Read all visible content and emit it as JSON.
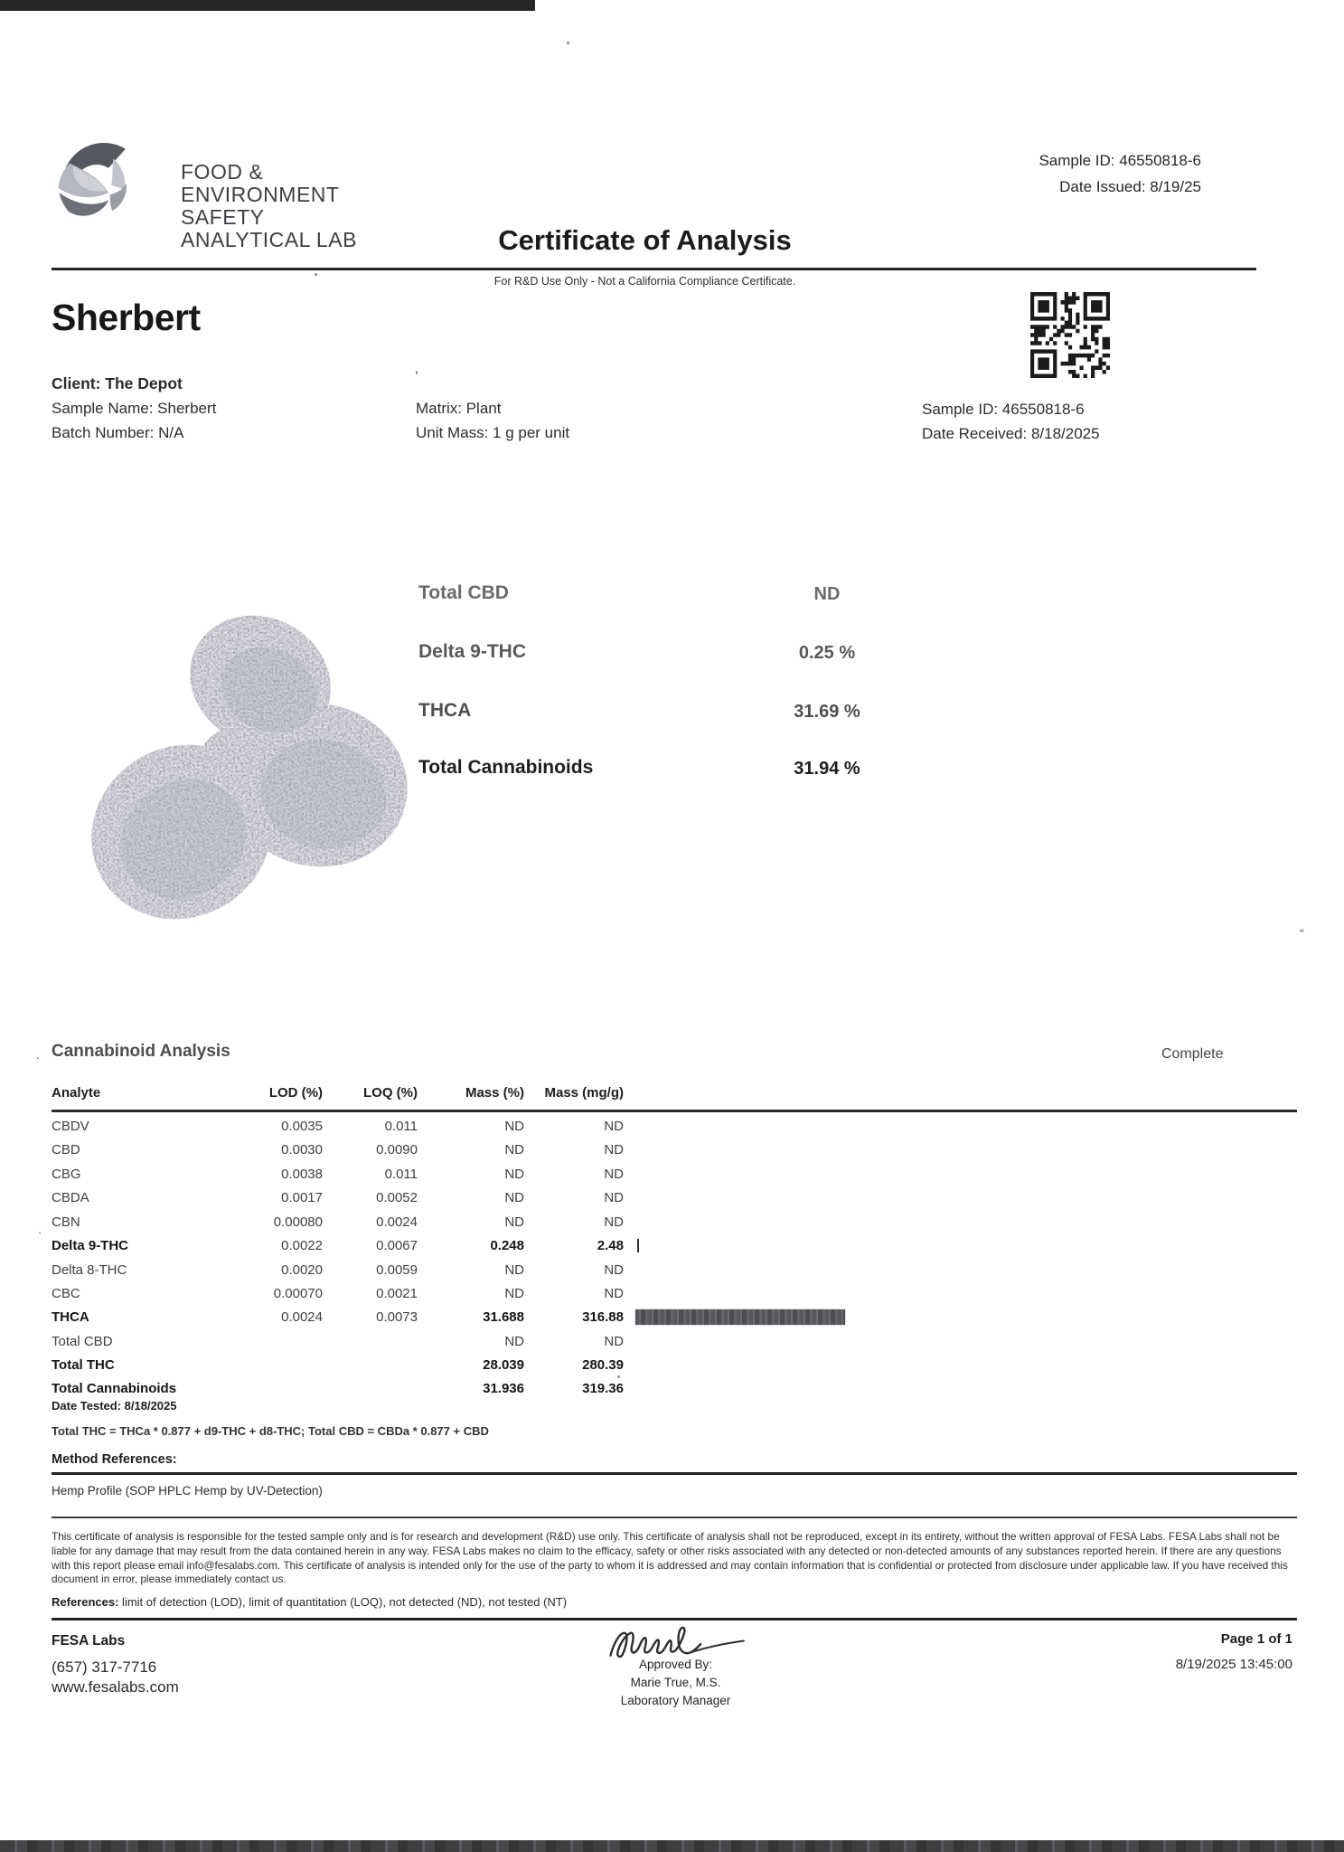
{
  "header": {
    "sample_id": "Sample ID: 46550818-6",
    "date_issued": "Date Issued: 8/19/25",
    "logo_lines": [
      "FOOD &",
      "ENVIRONMENT",
      "SAFETY",
      "ANALYTICAL LAB"
    ],
    "title": "Certificate of Analysis",
    "subtitle": "For R&D Use Only - Not a California Compliance Certificate."
  },
  "sample": {
    "name_heading": "Sherbert",
    "client": "Client: The Depot",
    "sample_name": "Sample Name: Sherbert",
    "batch_number": "Batch Number: N/A",
    "matrix": "Matrix: Plant",
    "unit_mass": "Unit Mass: 1 g per unit",
    "sample_id": "Sample ID: 46550818-6",
    "date_received": "Date Received: 8/18/2025"
  },
  "summary": {
    "rows": [
      {
        "label": "Total CBD",
        "value": "ND"
      },
      {
        "label": "Delta 9-THC",
        "value": "0.25 %"
      },
      {
        "label": "THCA",
        "value": "31.69 %"
      },
      {
        "label": "Total Cannabinoids",
        "value": "31.94 %"
      }
    ]
  },
  "analysis": {
    "section_title": "Cannabinoid Analysis",
    "status": "Complete",
    "columns": {
      "analyte": "Analyte",
      "lod": "LOD (%)",
      "loq": "LOQ (%)",
      "mass": "Mass (%)",
      "mgg": "Mass (mg/g)"
    },
    "rows": [
      {
        "analyte": "CBDV",
        "lod": "0.0035",
        "loq": "0.011",
        "mass": "ND",
        "mgg": "ND"
      },
      {
        "analyte": "CBD",
        "lod": "0.0030",
        "loq": "0.0090",
        "mass": "ND",
        "mgg": "ND"
      },
      {
        "analyte": "CBG",
        "lod": "0.0038",
        "loq": "0.011",
        "mass": "ND",
        "mgg": "ND"
      },
      {
        "analyte": "CBDA",
        "lod": "0.0017",
        "loq": "0.0052",
        "mass": "ND",
        "mgg": "ND"
      },
      {
        "analyte": "CBN",
        "lod": "0.00080",
        "loq": "0.0024",
        "mass": "ND",
        "mgg": "ND"
      },
      {
        "analyte": "Delta 9-THC",
        "lod": "0.0022",
        "loq": "0.0067",
        "mass": "0.248",
        "mgg": "2.48"
      },
      {
        "analyte": "Delta 8-THC",
        "lod": "0.0020",
        "loq": "0.0059",
        "mass": "ND",
        "mgg": "ND"
      },
      {
        "analyte": "CBC",
        "lod": "0.00070",
        "loq": "0.0021",
        "mass": "ND",
        "mgg": "ND"
      },
      {
        "analyte": "THCA",
        "lod": "0.0024",
        "loq": "0.0073",
        "mass": "31.688",
        "mgg": "316.88"
      },
      {
        "analyte": "Total CBD",
        "lod": "",
        "loq": "",
        "mass": "ND",
        "mgg": "ND"
      },
      {
        "analyte": "Total THC",
        "lod": "",
        "loq": "",
        "mass": "28.039",
        "mgg": "280.39"
      },
      {
        "analyte": "Total Cannabinoids",
        "lod": "",
        "loq": "",
        "mass": "31.936",
        "mgg": "319.36"
      }
    ],
    "date_tested": "Date Tested: 8/18/2025",
    "formula": "Total THC = THCa * 0.877 + d9-THC + d8-THC; Total CBD = CBDa * 0.877 + CBD"
  },
  "method": {
    "heading": "Method References:",
    "reference": "Hemp Profile (SOP HPLC Hemp by UV-Detection)"
  },
  "disclaimer": "This certificate of analysis is responsible for the tested sample only and is for research and development (R&D) use only. This certificate of analysis shall not be reproduced, except in its entirety, without the written approval of FESA Labs. FESA Labs shall not be liable for any damage that may result from the data contained herein in any way. FESA Labs makes no claim to the efficacy, safety or other risks associated with any detected or non-detected amounts of any substances reported herein. If there are any questions with this report please email info@fesalabs.com. This certificate of analysis is intended only for the use of the party to whom it is addressed and may contain information that is confidential or protected from disclosure under applicable law. If you have received this document in error, please immediately contact us.",
  "references_note": {
    "label": "References:",
    "text": " limit of detection (LOD), limit of quantitation (LOQ), not detected (ND), not tested (NT)"
  },
  "footer": {
    "lab_name": "FESA Labs",
    "phone": "(657) 317-7716",
    "website": "www.fesalabs.com",
    "approved_by_label": "Approved By:",
    "approver": "Marie True, M.S.",
    "approver_title": "Laboratory Manager",
    "page": "Page 1 of 1",
    "timestamp": "8/19/2025 13:45:00"
  }
}
